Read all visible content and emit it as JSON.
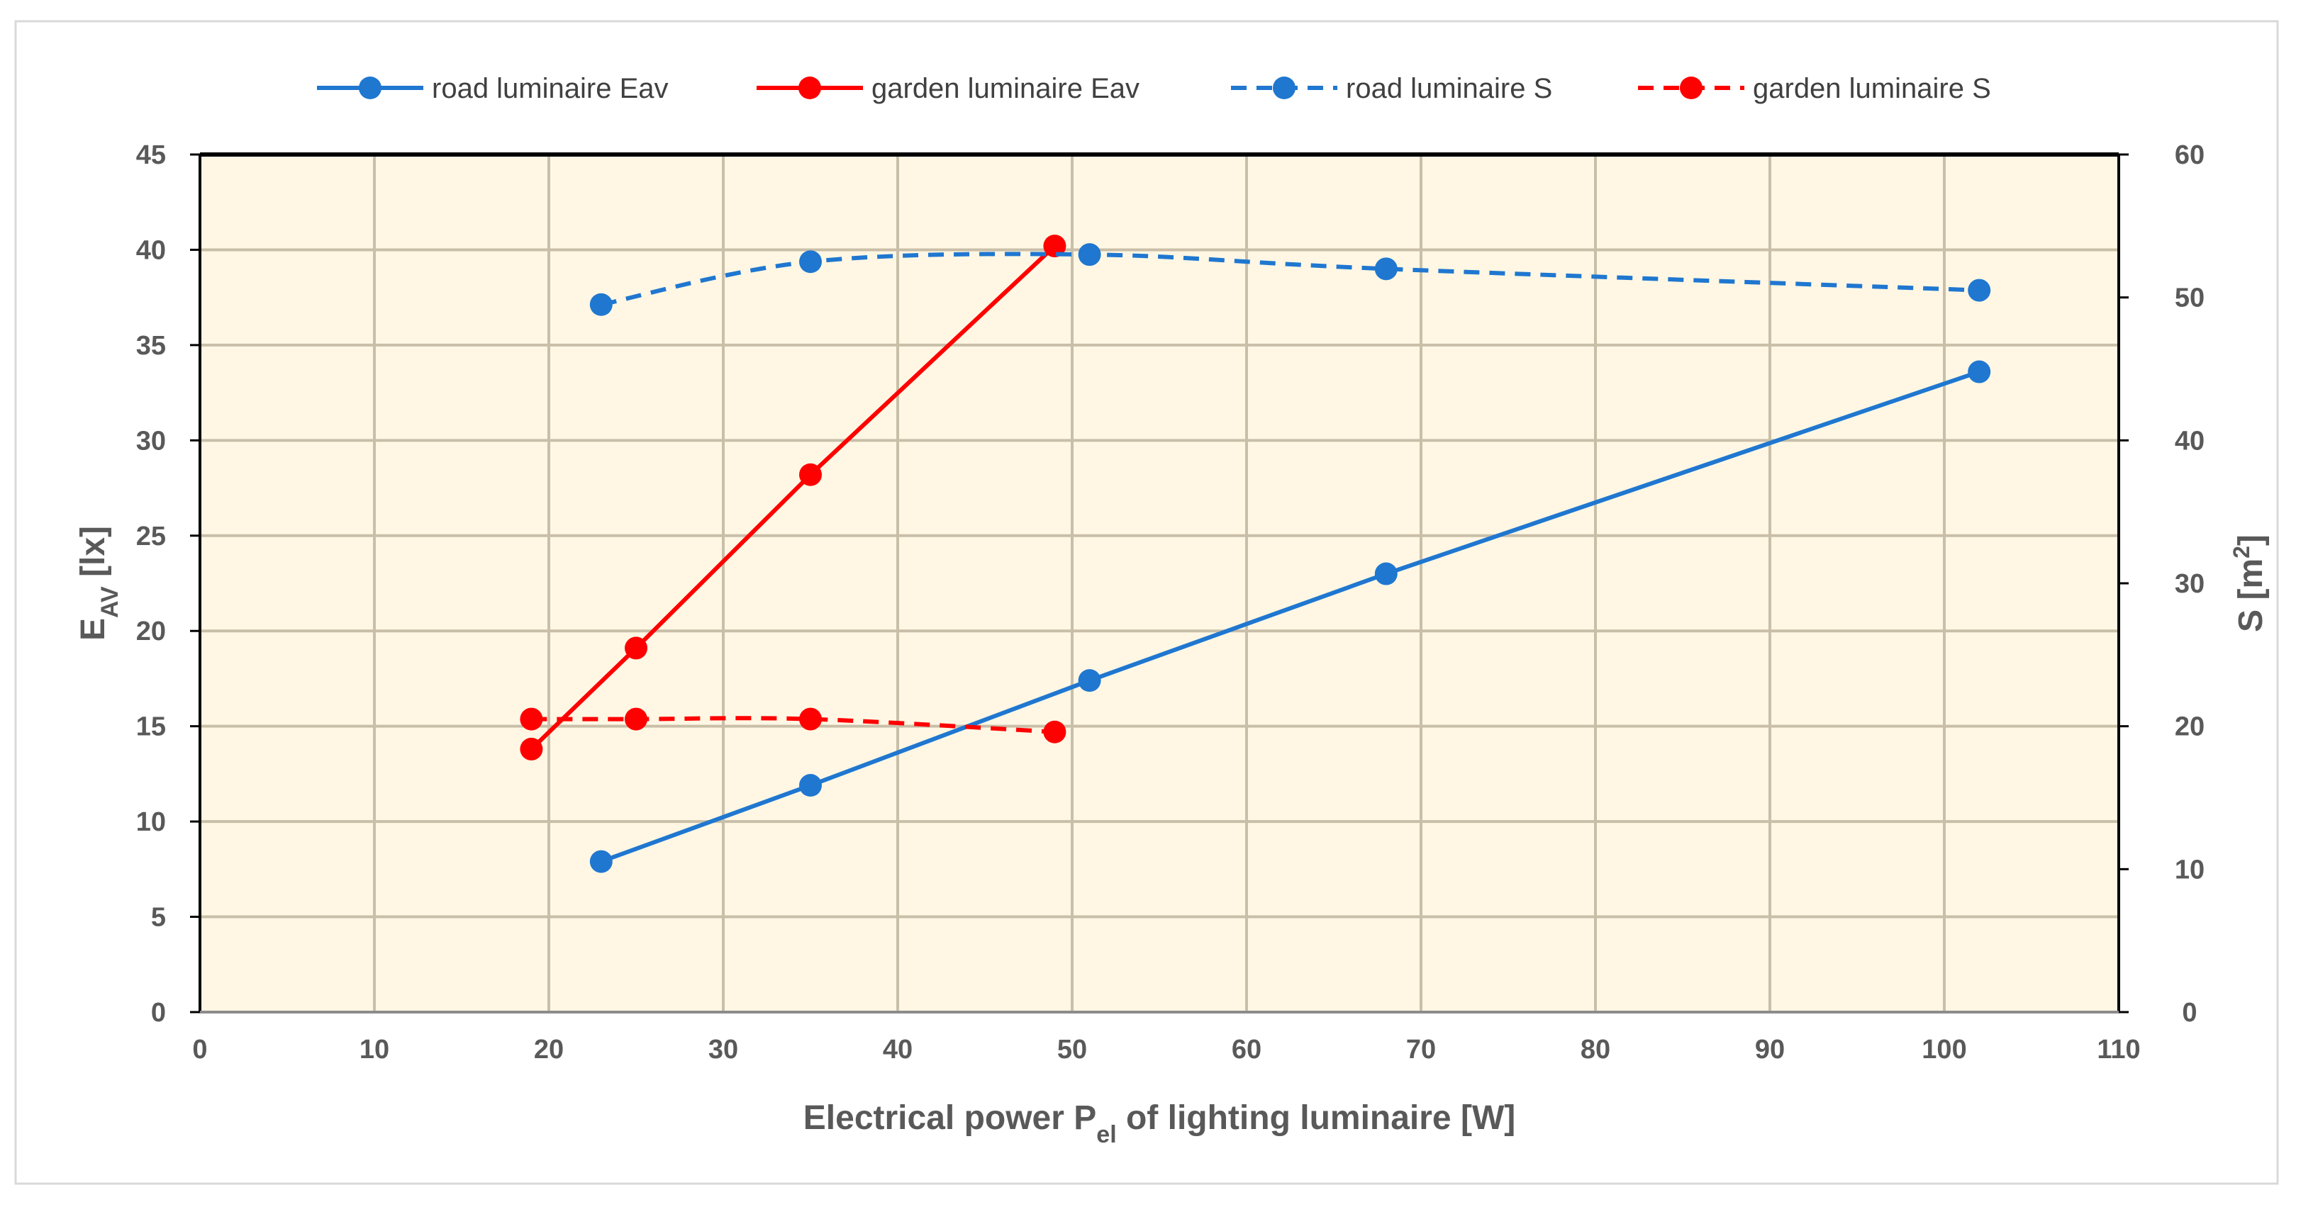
{
  "chart_data": {
    "type": "line",
    "title": "",
    "xlabel": {
      "main": "Electrical power P",
      "sub": "el",
      "rest": " of lighting luminaire [W]"
    },
    "ylabel": {
      "main": "E",
      "sub": "AV",
      "rest": " [lx]"
    },
    "y2label": {
      "main": "S [m",
      "sup": "2",
      "rest": "]"
    },
    "xlim": [
      0,
      110
    ],
    "ylim": [
      0,
      45
    ],
    "y2lim": [
      0,
      60
    ],
    "xticks": [
      "0",
      "10",
      "20",
      "30",
      "40",
      "50",
      "60",
      "70",
      "80",
      "90",
      "100",
      "110"
    ],
    "yticks": [
      "0",
      "5",
      "10",
      "15",
      "20",
      "25",
      "30",
      "35",
      "40",
      "45"
    ],
    "y2ticks": [
      "0",
      "10",
      "20",
      "30",
      "40",
      "50",
      "60"
    ],
    "grid": true,
    "legend_position": "top",
    "plot_background": "#FFF7E4",
    "grid_color": "#C9BFA9",
    "series": [
      {
        "name": "road luminaire Eav",
        "axis": "left",
        "style": "solid",
        "smooth": false,
        "color": "#1F77D0",
        "x": [
          23,
          35,
          51,
          68,
          102
        ],
        "y": [
          7.9,
          11.9,
          17.4,
          23.0,
          33.6
        ]
      },
      {
        "name": "garden luminaire Eav",
        "axis": "left",
        "style": "solid",
        "smooth": false,
        "color": "#FF0000",
        "x": [
          19,
          25,
          35,
          49
        ],
        "y": [
          13.8,
          19.1,
          28.2,
          40.2
        ]
      },
      {
        "name": "road luminaire S",
        "axis": "right",
        "style": "dashed",
        "smooth": true,
        "color": "#1F77D0",
        "x": [
          23,
          35,
          51,
          68,
          102
        ],
        "y": [
          49.5,
          52.5,
          53.0,
          52.0,
          50.5
        ]
      },
      {
        "name": "garden luminaire S",
        "axis": "right",
        "style": "dashed",
        "smooth": true,
        "color": "#FF0000",
        "x": [
          19,
          25,
          35,
          49
        ],
        "y": [
          20.5,
          20.5,
          20.5,
          19.6
        ]
      }
    ]
  }
}
